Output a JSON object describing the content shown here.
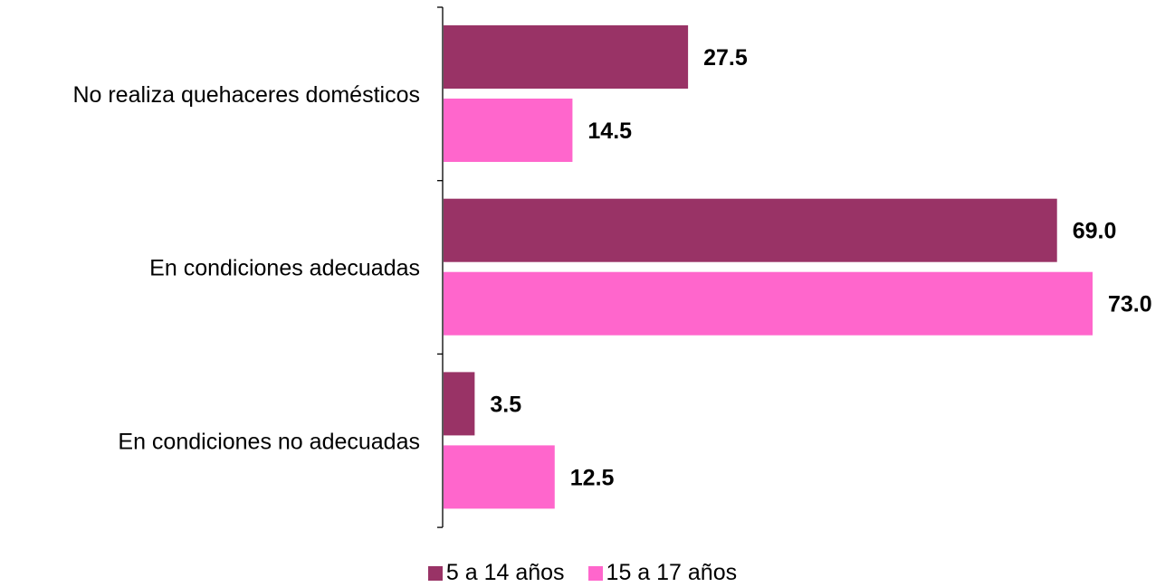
{
  "chart_data": {
    "type": "bar",
    "orientation": "horizontal",
    "categories": [
      "No realiza quehaceres domésticos",
      "En condiciones adecuadas",
      "En condiciones no adecuadas"
    ],
    "series": [
      {
        "name": "5 a 14 años",
        "color": "#993366",
        "values": [
          27.5,
          69.0,
          3.5
        ],
        "labels": [
          "27.5",
          "69.0",
          "3.5"
        ]
      },
      {
        "name": "15 a 17 años",
        "color": "#FF66CC",
        "values": [
          14.5,
          73.0,
          12.5
        ],
        "labels": [
          "14.5",
          "73.0",
          "12.5"
        ]
      }
    ],
    "title": "",
    "xlabel": "",
    "ylabel": "",
    "xlim": [
      0,
      73
    ],
    "grid": false,
    "legend_position": "bottom"
  }
}
